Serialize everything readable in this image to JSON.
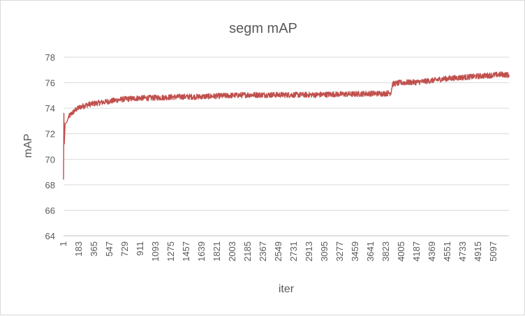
{
  "chart_data": {
    "type": "line",
    "title": "segm mAP",
    "xlabel": "iter",
    "ylabel": "mAP",
    "ylim": [
      64,
      78
    ],
    "y_ticks": [
      "64",
      "66",
      "68",
      "70",
      "72",
      "74",
      "76",
      "78"
    ],
    "x_tick_labels": [
      "1",
      "183",
      "365",
      "547",
      "729",
      "911",
      "1093",
      "1275",
      "1457",
      "1639",
      "1821",
      "2003",
      "2185",
      "2367",
      "2549",
      "2731",
      "2913",
      "3095",
      "3277",
      "3459",
      "3641",
      "3823",
      "4005",
      "4187",
      "4369",
      "4551",
      "4733",
      "4915",
      "5097"
    ],
    "x_range": [
      1,
      5280
    ],
    "grid": true,
    "legend": "none",
    "series": [
      {
        "color": "#c0504d",
        "x": [
          1,
          5,
          10,
          20,
          40,
          60,
          100,
          150,
          200,
          300,
          400,
          500,
          600,
          700,
          800,
          900,
          1000,
          1200,
          1400,
          1600,
          1800,
          2000,
          2200,
          2400,
          2600,
          2800,
          3000,
          3200,
          3400,
          3600,
          3800,
          3880,
          3900,
          3950,
          4000,
          4200,
          4400,
          4500,
          4600,
          4800,
          5000,
          5200,
          5280
        ],
        "y": [
          68.4,
          73.6,
          71.2,
          72.8,
          72.9,
          73.3,
          73.6,
          73.9,
          74.1,
          74.3,
          74.4,
          74.5,
          74.6,
          74.7,
          74.75,
          74.8,
          74.8,
          74.85,
          74.9,
          74.9,
          74.95,
          75.0,
          75.05,
          75.05,
          75.05,
          75.05,
          75.05,
          75.1,
          75.1,
          75.15,
          75.15,
          75.2,
          75.9,
          75.95,
          76.0,
          76.05,
          76.2,
          76.3,
          76.35,
          76.45,
          76.55,
          76.65,
          76.6
        ]
      }
    ]
  }
}
